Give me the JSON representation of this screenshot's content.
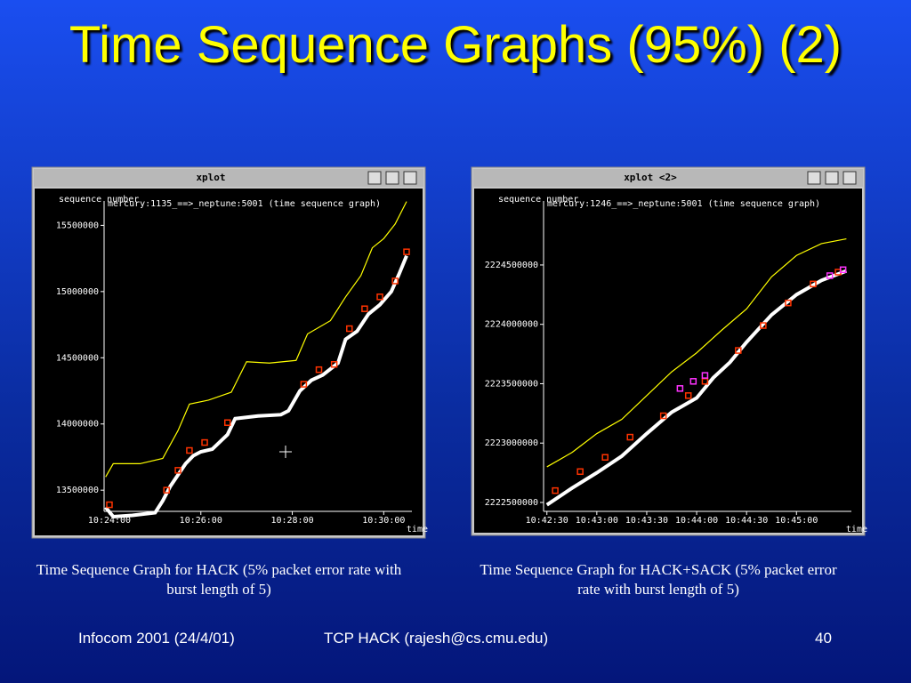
{
  "slide": {
    "title": "Time Sequence Graphs (95%) (2)",
    "captions": [
      "Time Sequence Graph for HACK (5% packet error rate with burst length of 5)",
      "Time Sequence Graph for HACK+SACK (5% packet error rate with burst length of 5)"
    ],
    "footer": {
      "left": "Infocom 2001 (24/4/01)",
      "center": "TCP HACK (rajesh@cs.cmu.edu)",
      "right": "40"
    }
  },
  "chart_data": [
    {
      "type": "line",
      "window_title": "xplot",
      "title": "mercury:1135_==>_neptune:5001 (time sequence graph)",
      "ylabel": "sequence number",
      "xlabel": "time",
      "xlim": [
        "10:23:53",
        "10:30:37"
      ],
      "xticks": [
        "10:24:00",
        "10:26:00",
        "10:28:00",
        "10:30:00"
      ],
      "ylim": [
        13340000,
        15590000
      ],
      "yticks": [
        13500000,
        14000000,
        14500000,
        15000000,
        15500000
      ],
      "series": [
        {
          "color": "#ffff00",
          "style": "line",
          "x": [
            "10:23:55",
            "10:24:05",
            "10:24:40",
            "10:25:10",
            "10:25:30",
            "10:25:45",
            "10:26:10",
            "10:26:40",
            "10:27:00",
            "10:27:30",
            "10:28:05",
            "10:28:20",
            "10:28:50",
            "10:29:10",
            "10:29:30",
            "10:29:45",
            "10:30:00",
            "10:30:15",
            "10:30:30"
          ],
          "values": [
            13600000,
            13700000,
            13700000,
            13740000,
            13950000,
            14150000,
            14180000,
            14240000,
            14470000,
            14460000,
            14480000,
            14680000,
            14780000,
            14960000,
            15120000,
            15330000,
            15400000,
            15510000,
            15680000
          ]
        },
        {
          "color": "#ffffff",
          "style": "line",
          "x": [
            "10:23:55",
            "10:24:05",
            "10:24:30",
            "10:25:00",
            "10:25:10",
            "10:25:20",
            "10:25:40",
            "10:25:50",
            "10:26:00",
            "10:26:15",
            "10:26:35",
            "10:26:45",
            "10:27:15",
            "10:27:45",
            "10:27:55",
            "10:28:10",
            "10:28:25",
            "10:28:40",
            "10:29:00",
            "10:29:10",
            "10:29:25",
            "10:29:40",
            "10:29:55",
            "10:30:10",
            "10:30:20",
            "10:30:30"
          ],
          "values": [
            13370000,
            13300000,
            13310000,
            13330000,
            13420000,
            13530000,
            13700000,
            13760000,
            13790000,
            13810000,
            13920000,
            14040000,
            14060000,
            14070000,
            14100000,
            14250000,
            14330000,
            14370000,
            14460000,
            14640000,
            14700000,
            14830000,
            14900000,
            15000000,
            15130000,
            15270000
          ]
        },
        {
          "color": "#ff3300",
          "style": "points",
          "x": [
            "10:24:00",
            "10:25:15",
            "10:25:30",
            "10:25:45",
            "10:26:05",
            "10:26:35",
            "10:28:15",
            "10:28:35",
            "10:28:55",
            "10:29:15",
            "10:29:35",
            "10:29:55",
            "10:30:15",
            "10:30:30"
          ],
          "values": [
            13390000,
            13500000,
            13650000,
            13800000,
            13860000,
            14010000,
            14300000,
            14410000,
            14450000,
            14720000,
            14870000,
            14960000,
            15080000,
            15300000
          ]
        }
      ]
    },
    {
      "type": "line",
      "window_title": "xplot <2>",
      "title": "mercury:1246_==>_neptune:5001 (time sequence graph)",
      "ylabel": "sequence number",
      "xlabel": "time",
      "xlim": [
        "10:42:28",
        "10:45:33"
      ],
      "xticks": [
        "10:42:30",
        "10:43:00",
        "10:43:30",
        "10:44:00",
        "10:44:30",
        "10:45:00"
      ],
      "ylim": [
        2222425000,
        2224934000
      ],
      "yticks": [
        2222500000,
        2223000000,
        2223500000,
        2224000000,
        2224500000
      ],
      "series": [
        {
          "color": "#ffff00",
          "style": "line",
          "x": [
            "10:42:30",
            "10:42:45",
            "10:43:00",
            "10:43:15",
            "10:43:30",
            "10:43:45",
            "10:44:00",
            "10:44:15",
            "10:44:30",
            "10:44:45",
            "10:45:00",
            "10:45:15",
            "10:45:30"
          ],
          "values": [
            2222800000,
            2222920000,
            2223080000,
            2223200000,
            2223400000,
            2223600000,
            2223760000,
            2223950000,
            2224130000,
            2224400000,
            2224580000,
            2224680000,
            2224720000
          ]
        },
        {
          "color": "#ffffff",
          "style": "line",
          "x": [
            "10:42:30",
            "10:42:45",
            "10:43:00",
            "10:43:15",
            "10:43:30",
            "10:43:45",
            "10:44:00",
            "10:44:10",
            "10:44:20",
            "10:44:30",
            "10:44:45",
            "10:45:00",
            "10:45:15",
            "10:45:30"
          ],
          "values": [
            2222480000,
            2222620000,
            2222750000,
            2222890000,
            2223080000,
            2223260000,
            2223380000,
            2223550000,
            2223680000,
            2223850000,
            2224080000,
            2224250000,
            2224370000,
            2224450000
          ]
        },
        {
          "color": "#ff3300",
          "style": "points",
          "x": [
            "10:42:35",
            "10:42:50",
            "10:43:05",
            "10:43:20",
            "10:43:40",
            "10:43:55",
            "10:44:05",
            "10:44:25",
            "10:44:40",
            "10:44:55",
            "10:45:10",
            "10:45:25"
          ],
          "values": [
            2222600000,
            2222760000,
            2222880000,
            2223050000,
            2223230000,
            2223400000,
            2223520000,
            2223780000,
            2223990000,
            2224180000,
            2224340000,
            2224440000
          ]
        },
        {
          "color": "#ff33ff",
          "style": "points",
          "x": [
            "10:43:50",
            "10:43:58",
            "10:44:05",
            "10:45:20",
            "10:45:28"
          ],
          "values": [
            2223460000,
            2223520000,
            2223570000,
            2224410000,
            2224460000
          ]
        }
      ]
    }
  ]
}
